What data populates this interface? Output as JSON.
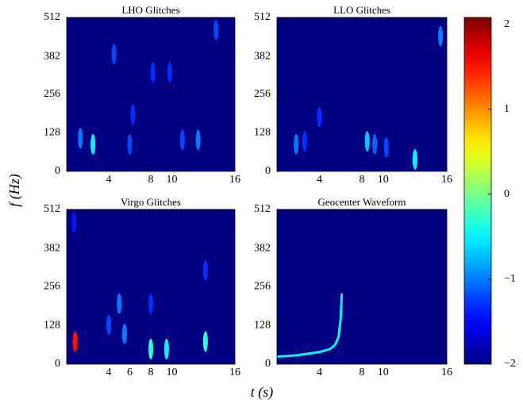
{
  "xlabel": "t (s)",
  "ylabel": "f (Hz)",
  "colorbar": {
    "ylim": [
      -2,
      2.08
    ],
    "yticks": [
      {
        "value": -2,
        "label": "−2"
      },
      {
        "value": -1,
        "label": "−1"
      },
      0,
      1,
      2
    ]
  },
  "chart_data": [
    {
      "type": "heatmap",
      "title": "LHO Glitches",
      "xlim": [
        0,
        16
      ],
      "ylim": [
        0,
        512
      ],
      "xticks": [
        4,
        8,
        10,
        16
      ],
      "yticks": [
        0,
        128,
        256,
        382,
        512
      ],
      "x": [
        1.3,
        2.5,
        4.5,
        6.3,
        6.0,
        8.2,
        9.8,
        11.0,
        14.2,
        12.5
      ],
      "y": [
        110,
        90,
        390,
        190,
        90,
        330,
        330,
        105,
        470,
        105
      ],
      "values": [
        -1.0,
        -0.5,
        -1.2,
        -1.3,
        -1.2,
        -1.3,
        -1.3,
        -1.2,
        -1.2,
        -1.0
      ]
    },
    {
      "type": "heatmap",
      "title": "LLO Glitches",
      "xlim": [
        0,
        16
      ],
      "ylim": [
        0,
        512
      ],
      "xticks": [
        4,
        8,
        10,
        16
      ],
      "yticks": [
        0,
        128,
        256,
        382,
        512
      ],
      "x": [
        1.8,
        2.6,
        4.0,
        8.5,
        9.2,
        10.3,
        13.0,
        15.4
      ],
      "y": [
        90,
        100,
        180,
        100,
        90,
        80,
        40,
        450
      ],
      "values": [
        -1.0,
        -1.3,
        -1.3,
        -0.7,
        -1.1,
        -1.2,
        -0.5,
        -1.0
      ]
    },
    {
      "type": "heatmap",
      "title": "Virgo Glitches",
      "xlim": [
        0,
        16
      ],
      "ylim": [
        0,
        512
      ],
      "xticks": [
        4,
        6,
        8,
        10,
        16
      ],
      "yticks": [
        0,
        128,
        256,
        382,
        512
      ],
      "x": [
        0.8,
        0.7,
        4.0,
        5.0,
        5.5,
        8.0,
        8.0,
        9.5,
        13.2,
        13.2
      ],
      "y": [
        75,
        470,
        130,
        200,
        100,
        50,
        200,
        50,
        75,
        310
      ],
      "values": [
        1.5,
        -1.4,
        -1.2,
        -1.0,
        -1.0,
        -0.3,
        -1.3,
        -0.5,
        -0.3,
        -1.3
      ]
    },
    {
      "type": "line",
      "title": "Geocenter Waveform",
      "xlim": [
        0,
        16
      ],
      "ylim": [
        0,
        512
      ],
      "xticks": [
        4,
        8,
        10,
        16
      ],
      "yticks": [
        0,
        128,
        256,
        382,
        512
      ],
      "x": [
        0,
        1,
        2,
        3,
        4,
        5,
        5.5,
        5.8,
        6.0,
        6.1
      ],
      "y": [
        25,
        27,
        30,
        35,
        40,
        50,
        65,
        90,
        150,
        230
      ],
      "level": -0.5
    }
  ]
}
